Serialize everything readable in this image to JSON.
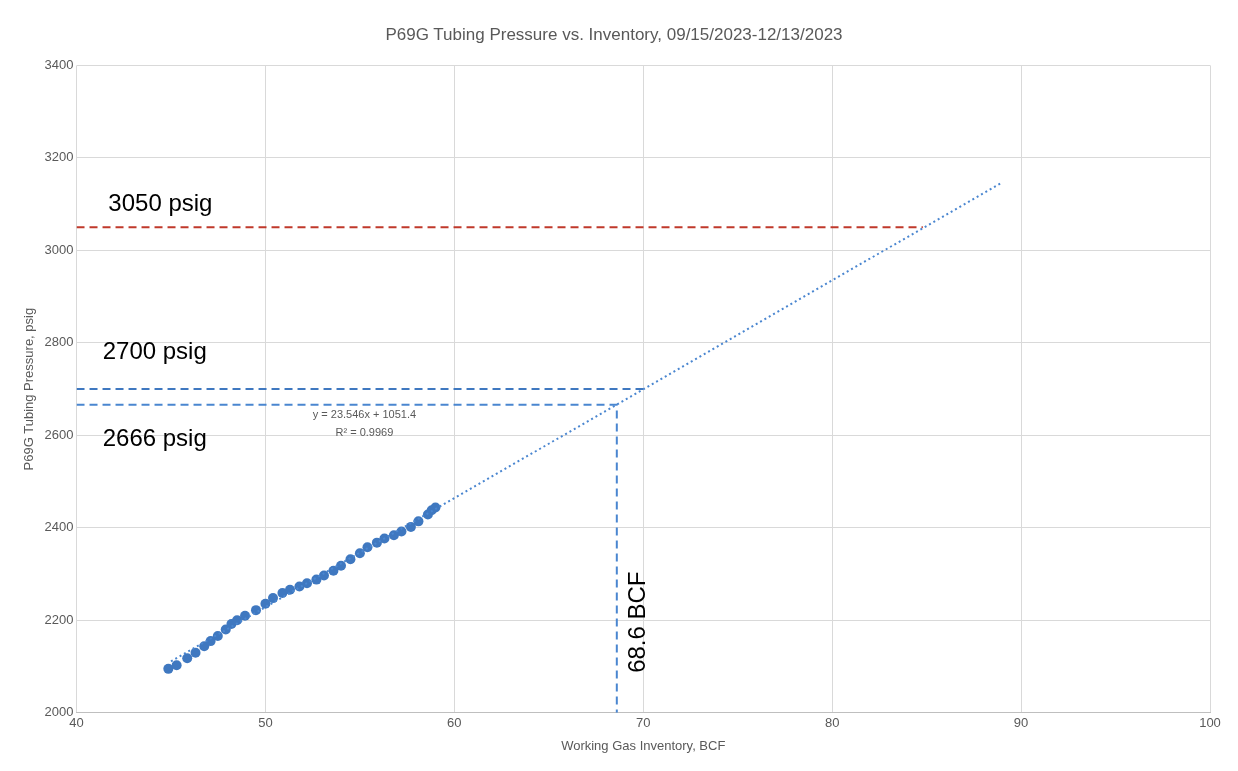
{
  "chart_data": {
    "type": "scatter",
    "title": "P69G Tubing Pressure vs. Inventory, 09/15/2023-12/13/2023",
    "xlabel": "Working Gas Inventory, BCF",
    "ylabel": "P69G Tubing Pressure, psig",
    "xlim": [
      40,
      100
    ],
    "xticks": [
      40,
      50,
      60,
      70,
      80,
      90,
      100
    ],
    "ylim": [
      2000,
      3400
    ],
    "yticks": [
      2000,
      2200,
      2400,
      2600,
      2800,
      3000,
      3200,
      3400
    ],
    "grid": true,
    "legend": false,
    "series": [
      {
        "type": "scatter",
        "color": "#3f78c0",
        "marker": "circle",
        "x": [
          44.86,
          45.3,
          45.86,
          46.3,
          46.76,
          47.1,
          47.48,
          47.9,
          48.2,
          48.5,
          48.92,
          49.5,
          50.0,
          50.4,
          50.9,
          51.3,
          51.8,
          52.2,
          52.7,
          53.1,
          53.6,
          54.0,
          54.5,
          55.0,
          55.4,
          55.9,
          56.3,
          56.8,
          57.2,
          57.7,
          58.1,
          58.6,
          58.8,
          59.0
        ],
        "values": [
          2095,
          2103,
          2118,
          2130,
          2144,
          2155,
          2166,
          2180,
          2192,
          2200,
          2210,
          2222,
          2236,
          2248,
          2259,
          2266,
          2273,
          2280,
          2288,
          2297,
          2307,
          2318,
          2332,
          2345,
          2358,
          2368,
          2377,
          2384,
          2392,
          2402,
          2414,
          2429,
          2438,
          2444
        ]
      },
      {
        "type": "line",
        "color": "#4a86d0",
        "line_style": "dotted",
        "marker": "none",
        "x": [
          45,
          89
        ],
        "values": [
          2111,
          3147
        ]
      },
      {
        "type": "line",
        "color": "#c0392b",
        "line_style": "dashed",
        "marker": "none",
        "x": [
          40,
          84.8
        ],
        "values": [
          3050,
          3050
        ]
      },
      {
        "type": "line",
        "color": "#3f78c0",
        "line_style": "dashed",
        "marker": "none",
        "x": [
          40,
          70
        ],
        "values": [
          2700,
          2700
        ]
      },
      {
        "type": "line",
        "color": "#4a86d0",
        "line_style": "dashed",
        "marker": "none",
        "x": [
          40,
          68.6,
          68.6
        ],
        "values": [
          2666,
          2666,
          2000
        ]
      }
    ],
    "annotations": [
      "3050 psig",
      "2700 psig",
      "2666 psig",
      "y = 23.546x + 1051.4",
      "R² = 0.9969",
      "68.6 BCF"
    ]
  }
}
